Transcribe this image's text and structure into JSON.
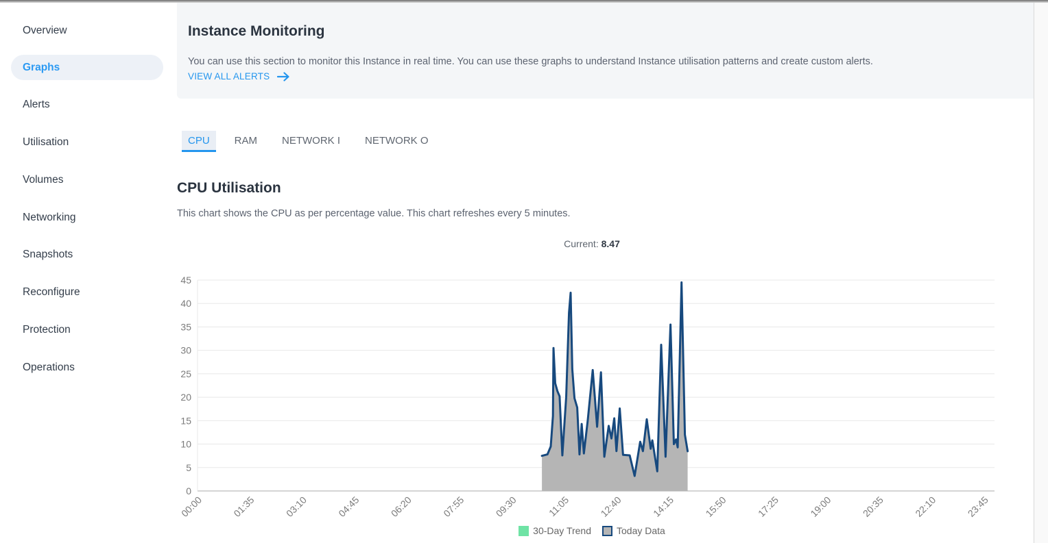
{
  "sidebar": {
    "items": [
      {
        "label": "Overview",
        "active": false
      },
      {
        "label": "Graphs",
        "active": true
      },
      {
        "label": "Alerts",
        "active": false
      },
      {
        "label": "Utilisation",
        "active": false
      },
      {
        "label": "Volumes",
        "active": false
      },
      {
        "label": "Networking",
        "active": false
      },
      {
        "label": "Snapshots",
        "active": false
      },
      {
        "label": "Reconfigure",
        "active": false
      },
      {
        "label": "Protection",
        "active": false
      },
      {
        "label": "Operations",
        "active": false
      }
    ]
  },
  "header": {
    "title": "Instance Monitoring",
    "description": "You can use this section to monitor this Instance in real time. You can use these graphs to understand Instance utilisation patterns and create custom alerts.",
    "link_label": "VIEW ALL ALERTS"
  },
  "tabs": [
    {
      "label": "CPU",
      "active": true
    },
    {
      "label": "RAM",
      "active": false
    },
    {
      "label": "NETWORK I",
      "active": false
    },
    {
      "label": "NETWORK O",
      "active": false
    }
  ],
  "section": {
    "title": "CPU Utilisation",
    "subtitle": "This chart shows the CPU as per percentage value. This chart refreshes every 5 minutes.",
    "current_label": "Current:",
    "current_value": "8.47"
  },
  "colors": {
    "accent_blue": "#2496ee",
    "panel_bg": "#f4f6f8",
    "grid": "#e8e8e8",
    "axis": "#c6c6c6",
    "tick_text": "#7b7b7b"
  },
  "chart_data": {
    "type": "area",
    "title": "CPU Utilisation",
    "xlabel": "",
    "ylabel": "",
    "ylim": [
      0,
      45
    ],
    "y_ticks": [
      0,
      5,
      10,
      15,
      20,
      25,
      30,
      35,
      40,
      45
    ],
    "x_ticks": [
      "00:00",
      "01:35",
      "03:10",
      "04:45",
      "06:20",
      "07:55",
      "09:30",
      "11:05",
      "12:40",
      "14:15",
      "15:50",
      "17:25",
      "19:00",
      "20:35",
      "22:10",
      "23:45"
    ],
    "x_tick_interval_minutes": 95,
    "x_domain_minutes": [
      0,
      1444
    ],
    "grid": true,
    "legend_position": "bottom",
    "current": 8.47,
    "series": [
      {
        "name": "30-Day Trend",
        "color": "#6fe3a5",
        "points": []
      },
      {
        "name": "Today Data",
        "line_color": "#17497e",
        "fill_color": "#b5b5b5",
        "points": [
          [
            "10:24",
            7.5
          ],
          [
            "10:34",
            7.8
          ],
          [
            "10:40",
            9.5
          ],
          [
            "10:44",
            16.0
          ],
          [
            "10:45",
            30.5
          ],
          [
            "10:48",
            23.0
          ],
          [
            "10:52",
            21.3
          ],
          [
            "10:56",
            20.2
          ],
          [
            "11:01",
            7.6
          ],
          [
            "11:08",
            20.0
          ],
          [
            "11:13",
            38.0
          ],
          [
            "11:16",
            42.3
          ],
          [
            "11:19",
            26.0
          ],
          [
            "11:23",
            19.8
          ],
          [
            "11:28",
            17.8
          ],
          [
            "11:32",
            7.8
          ],
          [
            "11:36",
            14.3
          ],
          [
            "11:40",
            8.0
          ],
          [
            "11:47",
            15.0
          ],
          [
            "11:56",
            25.8
          ],
          [
            "12:04",
            13.7
          ],
          [
            "12:11",
            25.3
          ],
          [
            "12:17",
            7.3
          ],
          [
            "12:25",
            13.9
          ],
          [
            "12:30",
            11.2
          ],
          [
            "12:35",
            15.5
          ],
          [
            "12:39",
            8.5
          ],
          [
            "12:45",
            17.6
          ],
          [
            "12:51",
            7.7
          ],
          [
            "13:03",
            7.6
          ],
          [
            "13:12",
            3.2
          ],
          [
            "13:22",
            10.5
          ],
          [
            "13:27",
            8.5
          ],
          [
            "13:34",
            15.3
          ],
          [
            "13:41",
            9.0
          ],
          [
            "13:44",
            10.8
          ],
          [
            "13:53",
            4.2
          ],
          [
            "14:00",
            31.2
          ],
          [
            "14:08",
            7.3
          ],
          [
            "14:17",
            35.5
          ],
          [
            "14:23",
            10.0
          ],
          [
            "14:27",
            11.0
          ],
          [
            "14:30",
            9.3
          ],
          [
            "14:37",
            44.5
          ],
          [
            "14:43",
            12.0
          ],
          [
            "14:48",
            8.47
          ]
        ]
      }
    ]
  }
}
